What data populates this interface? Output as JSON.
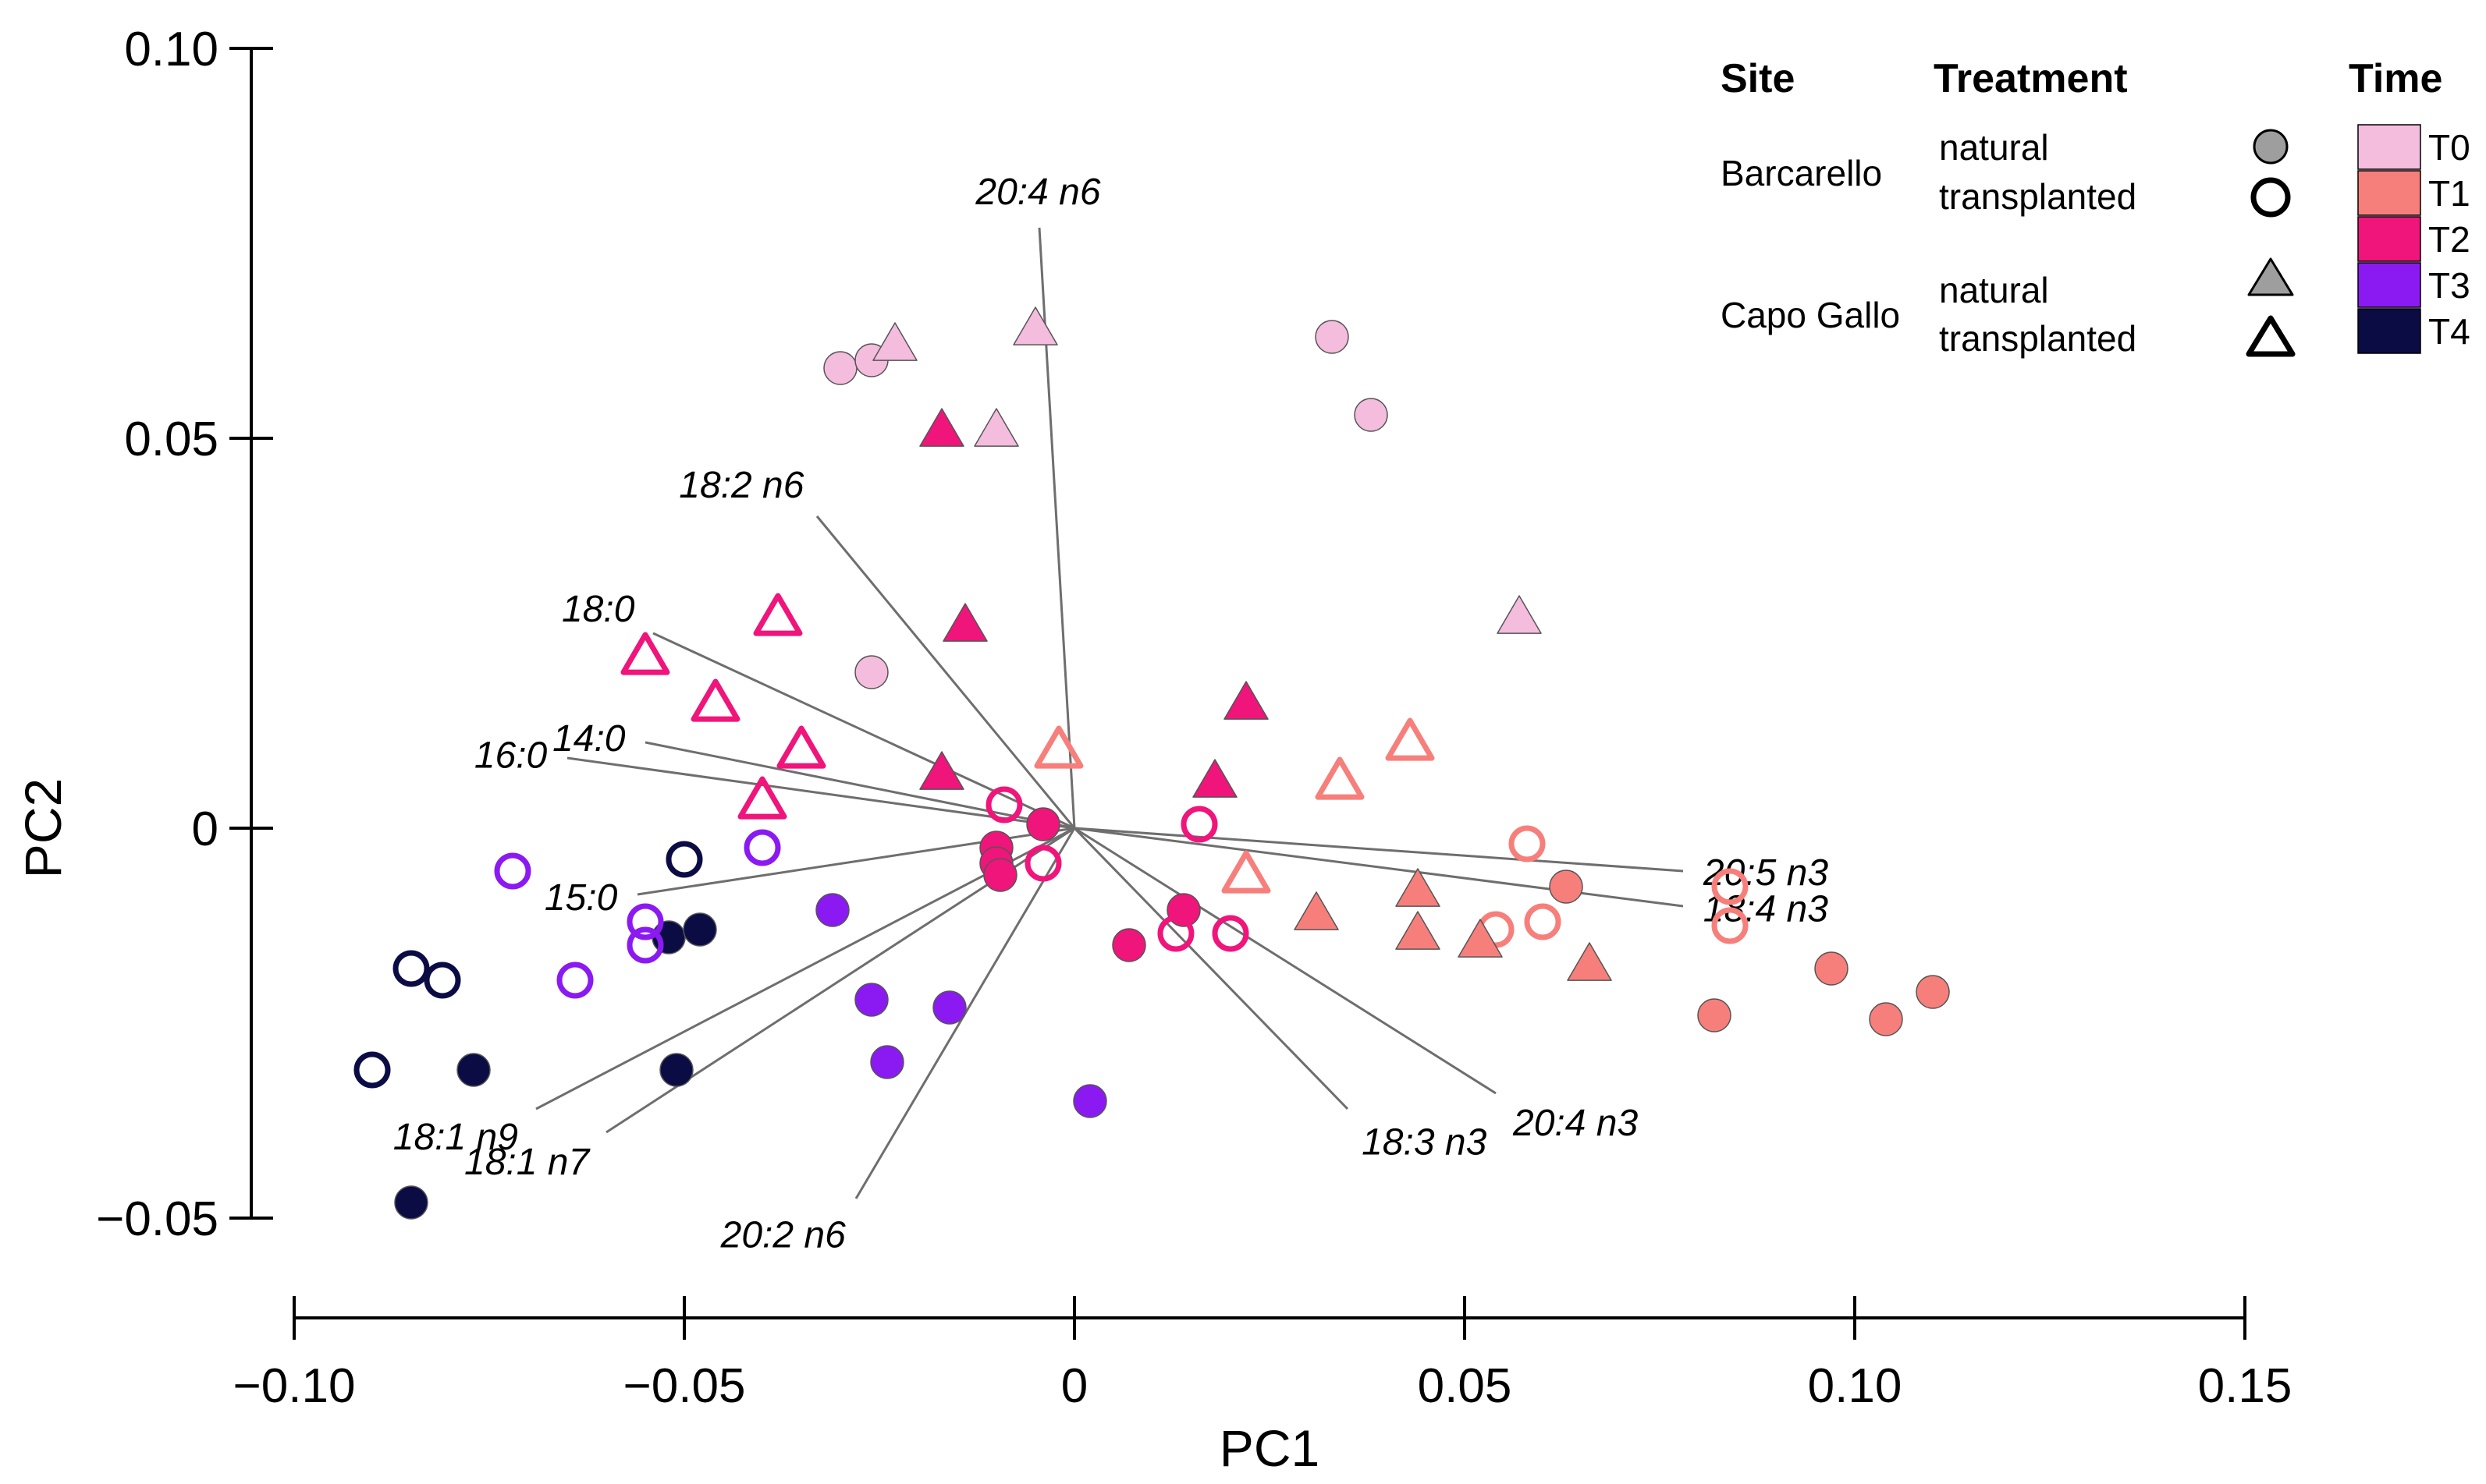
{
  "chart_data": {
    "type": "scatter",
    "title": "",
    "xlabel": "PC1",
    "ylabel": "PC2",
    "xlim": [
      -0.1,
      0.15
    ],
    "ylim": [
      -0.05,
      0.1
    ],
    "xticks": [
      -0.1,
      -0.05,
      0,
      0.05,
      0.1,
      0.15
    ],
    "xtick_labels": [
      "−0.10",
      "−0.05",
      "0",
      "0.05",
      "0.10",
      "0.15"
    ],
    "yticks": [
      -0.05,
      0,
      0.05,
      0.1
    ],
    "ytick_labels": [
      "−0.05",
      "0",
      "0.05",
      "0.10"
    ],
    "time_colors": {
      "T0": "#F4BCDD",
      "T1": "#F77F7B",
      "T2": "#F0157A",
      "T3": "#8B1AF2",
      "T4": "#0C0C45"
    },
    "legend": {
      "site_header": "Site",
      "treatment_header": "Treatment",
      "time_header": "Time",
      "sites": [
        {
          "site": "Barcarello",
          "treatments": [
            "natural",
            "transplanted"
          ],
          "shape": "circle"
        },
        {
          "site": "Capo Gallo",
          "treatments": [
            "natural",
            "transplanted"
          ],
          "shape": "triangle"
        }
      ],
      "times": [
        "T0",
        "T1",
        "T2",
        "T3",
        "T4"
      ]
    },
    "vectors": [
      {
        "label": "20:4 n6",
        "x": -0.0045,
        "y": 0.077
      },
      {
        "label": "18:2 n6",
        "x": -0.033,
        "y": 0.04
      },
      {
        "label": "18:0",
        "x": -0.054,
        "y": 0.025
      },
      {
        "label": "14:0",
        "x": -0.055,
        "y": 0.011
      },
      {
        "label": "16:0",
        "x": -0.065,
        "y": 0.009
      },
      {
        "label": "15:0",
        "x": -0.056,
        "y": -0.0085
      },
      {
        "label": "18:1 n9",
        "x": -0.069,
        "y": -0.036
      },
      {
        "label": "18:1 n7",
        "x": -0.06,
        "y": -0.039
      },
      {
        "label": "20:2 n6",
        "x": -0.028,
        "y": -0.0475
      },
      {
        "label": "18:3 n3",
        "x": 0.035,
        "y": -0.036
      },
      {
        "label": "20:4 n3",
        "x": 0.054,
        "y": -0.034
      },
      {
        "label": "20:5 n3",
        "x": 0.078,
        "y": -0.0055
      },
      {
        "label": "18:4 n3",
        "x": 0.078,
        "y": -0.01
      }
    ],
    "series": [
      {
        "name": "Barcarello natural",
        "site": "Barcarello",
        "treatment": "natural",
        "shape": "circle",
        "filled": true,
        "points": [
          {
            "x": -0.03,
            "y": 0.059,
            "t": "T0"
          },
          {
            "x": -0.026,
            "y": 0.06,
            "t": "T0"
          },
          {
            "x": -0.026,
            "y": 0.02,
            "t": "T0"
          },
          {
            "x": 0.033,
            "y": 0.063,
            "t": "T0"
          },
          {
            "x": 0.038,
            "y": 0.053,
            "t": "T0"
          },
          {
            "x": 0.063,
            "y": -0.0075,
            "t": "T1"
          },
          {
            "x": 0.082,
            "y": -0.024,
            "t": "T1"
          },
          {
            "x": 0.097,
            "y": -0.018,
            "t": "T1"
          },
          {
            "x": 0.104,
            "y": -0.0245,
            "t": "T1"
          },
          {
            "x": 0.11,
            "y": -0.021,
            "t": "T1"
          },
          {
            "x": -0.01,
            "y": -0.0025,
            "t": "T2"
          },
          {
            "x": -0.01,
            "y": -0.0045,
            "t": "T2"
          },
          {
            "x": -0.0095,
            "y": -0.006,
            "t": "T2"
          },
          {
            "x": -0.004,
            "y": 0.0005,
            "t": "T2"
          },
          {
            "x": 0.007,
            "y": -0.015,
            "t": "T2"
          },
          {
            "x": 0.014,
            "y": -0.0105,
            "t": "T2"
          },
          {
            "x": -0.031,
            "y": -0.0105,
            "t": "T3"
          },
          {
            "x": -0.026,
            "y": -0.022,
            "t": "T3"
          },
          {
            "x": -0.024,
            "y": -0.03,
            "t": "T3"
          },
          {
            "x": -0.016,
            "y": -0.023,
            "t": "T3"
          },
          {
            "x": 0.002,
            "y": -0.035,
            "t": "T3"
          },
          {
            "x": -0.085,
            "y": -0.048,
            "t": "T4"
          },
          {
            "x": -0.077,
            "y": -0.031,
            "t": "T4"
          },
          {
            "x": -0.052,
            "y": -0.014,
            "t": "T4"
          },
          {
            "x": -0.048,
            "y": -0.013,
            "t": "T4"
          },
          {
            "x": -0.051,
            "y": -0.031,
            "t": "T4"
          }
        ]
      },
      {
        "name": "Barcarello transplanted",
        "site": "Barcarello",
        "treatment": "transplanted",
        "shape": "circle",
        "filled": false,
        "points": [
          {
            "x": 0.054,
            "y": -0.013,
            "t": "T1"
          },
          {
            "x": 0.058,
            "y": -0.002,
            "t": "T1"
          },
          {
            "x": 0.06,
            "y": -0.012,
            "t": "T1"
          },
          {
            "x": 0.084,
            "y": -0.0075,
            "t": "T1"
          },
          {
            "x": 0.084,
            "y": -0.0125,
            "t": "T1"
          },
          {
            "x": -0.009,
            "y": 0.003,
            "t": "T2"
          },
          {
            "x": -0.004,
            "y": -0.0045,
            "t": "T2"
          },
          {
            "x": 0.016,
            "y": 0.0005,
            "t": "T2"
          },
          {
            "x": 0.013,
            "y": -0.0135,
            "t": "T2"
          },
          {
            "x": 0.02,
            "y": -0.0135,
            "t": "T2"
          },
          {
            "x": -0.072,
            "y": -0.0055,
            "t": "T3"
          },
          {
            "x": -0.064,
            "y": -0.0195,
            "t": "T3"
          },
          {
            "x": -0.055,
            "y": -0.012,
            "t": "T3"
          },
          {
            "x": -0.055,
            "y": -0.015,
            "t": "T3"
          },
          {
            "x": -0.04,
            "y": -0.0025,
            "t": "T3"
          },
          {
            "x": -0.09,
            "y": -0.031,
            "t": "T4"
          },
          {
            "x": -0.085,
            "y": -0.018,
            "t": "T4"
          },
          {
            "x": -0.081,
            "y": -0.0195,
            "t": "T4"
          },
          {
            "x": -0.05,
            "y": -0.004,
            "t": "T4"
          }
        ]
      },
      {
        "name": "Capo Gallo natural",
        "site": "Capo Gallo",
        "treatment": "natural",
        "shape": "triangle",
        "filled": true,
        "points": [
          {
            "x": -0.023,
            "y": 0.062,
            "t": "T0"
          },
          {
            "x": -0.005,
            "y": 0.064,
            "t": "T0"
          },
          {
            "x": -0.01,
            "y": 0.051,
            "t": "T0"
          },
          {
            "x": 0.057,
            "y": 0.027,
            "t": "T0"
          },
          {
            "x": 0.031,
            "y": -0.011,
            "t": "T1"
          },
          {
            "x": 0.044,
            "y": -0.008,
            "t": "T1"
          },
          {
            "x": 0.044,
            "y": -0.0135,
            "t": "T1"
          },
          {
            "x": 0.052,
            "y": -0.0145,
            "t": "T1"
          },
          {
            "x": 0.066,
            "y": -0.0175,
            "t": "T1"
          },
          {
            "x": -0.017,
            "y": 0.051,
            "t": "T2"
          },
          {
            "x": -0.014,
            "y": 0.026,
            "t": "T2"
          },
          {
            "x": -0.017,
            "y": 0.007,
            "t": "T2"
          },
          {
            "x": 0.018,
            "y": 0.006,
            "t": "T2"
          },
          {
            "x": 0.022,
            "y": 0.016,
            "t": "T2"
          }
        ]
      },
      {
        "name": "Capo Gallo transplanted",
        "site": "Capo Gallo",
        "treatment": "transplanted",
        "shape": "triangle",
        "filled": false,
        "points": [
          {
            "x": -0.002,
            "y": 0.01,
            "t": "T1"
          },
          {
            "x": 0.022,
            "y": -0.006,
            "t": "T1"
          },
          {
            "x": 0.034,
            "y": 0.006,
            "t": "T1"
          },
          {
            "x": 0.043,
            "y": 0.011,
            "t": "T1"
          },
          {
            "x": -0.055,
            "y": 0.022,
            "t": "T2"
          },
          {
            "x": -0.046,
            "y": 0.016,
            "t": "T2"
          },
          {
            "x": -0.038,
            "y": 0.027,
            "t": "T2"
          },
          {
            "x": -0.035,
            "y": 0.01,
            "t": "T2"
          },
          {
            "x": -0.04,
            "y": 0.0035,
            "t": "T2"
          }
        ]
      }
    ]
  }
}
